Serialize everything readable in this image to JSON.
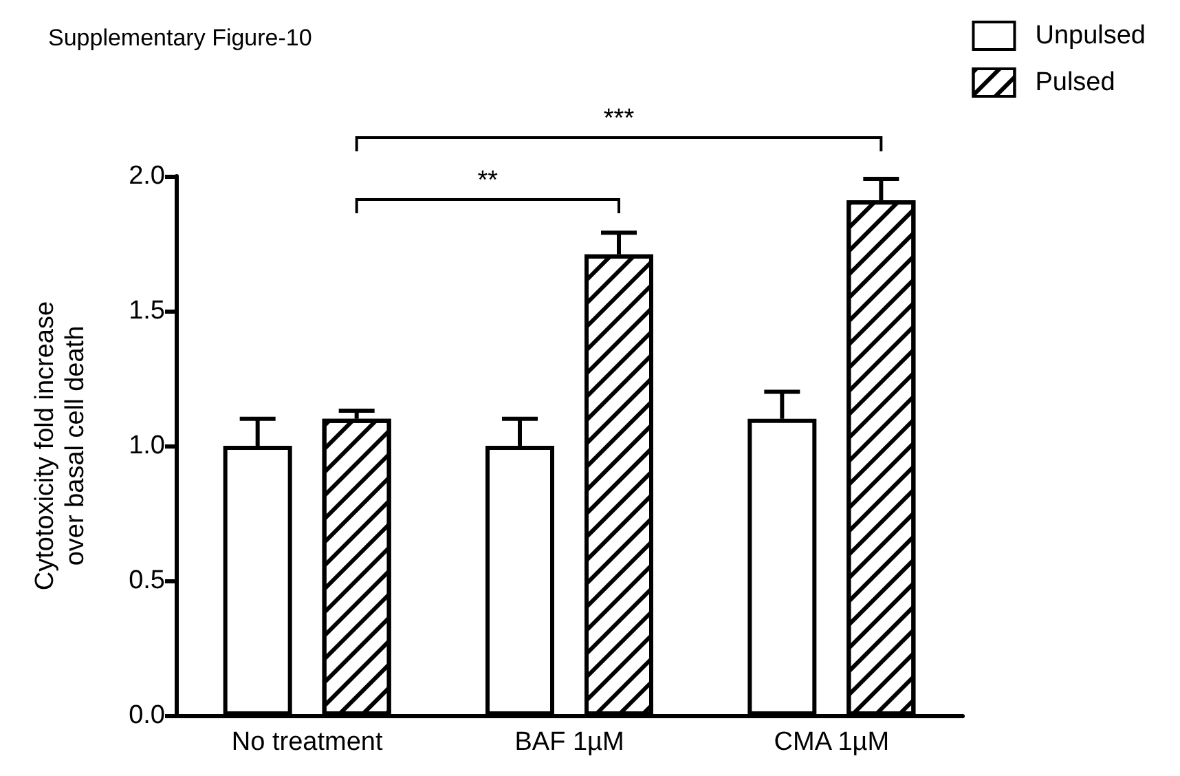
{
  "chart_data": {
    "type": "bar",
    "title": "Supplementary Figure-10",
    "ylabel": "Cytotoxicity fold increase over basal cell death",
    "categories": [
      "No treatment",
      "BAF 1µM",
      "CMA 1µM"
    ],
    "series": [
      {
        "name": "Unpulsed",
        "color": "#ffffff",
        "values": [
          1.0,
          1.0,
          1.1
        ],
        "errors": [
          0.1,
          0.1,
          0.1
        ]
      },
      {
        "name": "Pulsed",
        "color": "#000000",
        "values": [
          1.1,
          1.71,
          1.91
        ],
        "errors": [
          0.03,
          0.08,
          0.08
        ]
      }
    ],
    "ylim": [
      0,
      2
    ],
    "yticks": [
      {
        "value": 0,
        "label": "0.0"
      },
      {
        "value": 0.5,
        "label": "0.5"
      },
      {
        "value": 1,
        "label": "1.0"
      },
      {
        "value": 1.5,
        "label": "1.5"
      },
      {
        "value": 2,
        "label": "2.0"
      }
    ],
    "annotations": [
      "**",
      "***"
    ],
    "grid": false,
    "legend": "top right"
  }
}
